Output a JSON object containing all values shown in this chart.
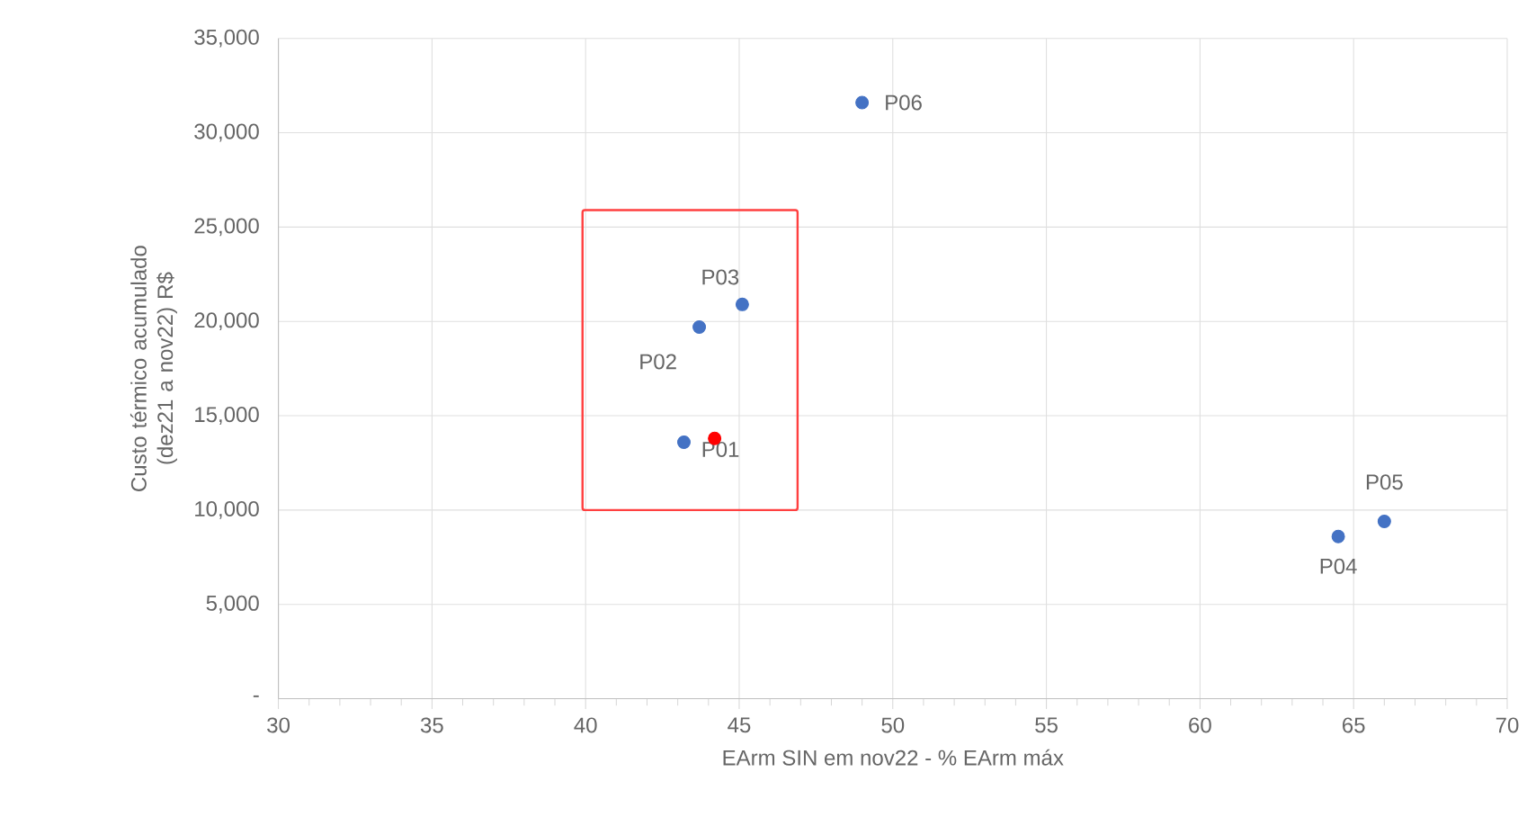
{
  "chart_data": {
    "type": "scatter",
    "xlabel": "EArm SIN em nov22 - % EArm máx",
    "ylabel": "Custo térmico acumulado (dez21 a nov22) R$",
    "series": [
      {
        "color": "#4472c4",
        "x": [
          43.2,
          43.7,
          45.1,
          64.5,
          66.0,
          49.0
        ],
        "values": [
          13600,
          19700,
          20900,
          8600,
          9400,
          31600
        ]
      },
      {
        "color": "#ff0000",
        "x": [
          44.2
        ],
        "values": [
          13800
        ]
      }
    ],
    "annotations": [
      {
        "text": "P01",
        "x": 43.2,
        "y": 13600
      },
      {
        "text": "P02",
        "x": 43.7,
        "y": 19700
      },
      {
        "text": "P03",
        "x": 45.1,
        "y": 20900
      },
      {
        "text": "P04",
        "x": 64.5,
        "y": 8600
      },
      {
        "text": "P05",
        "x": 66.0,
        "y": 9400
      },
      {
        "text": "P06",
        "x": 49.0,
        "y": 31600
      }
    ],
    "xlim": [
      30,
      70
    ],
    "xticks": [
      30,
      35,
      40,
      45,
      50,
      55,
      60,
      65,
      70
    ],
    "ylim": [
      0,
      35000
    ],
    "yticks": [
      {
        "value": 0,
        "label": "-"
      },
      {
        "value": 5000,
        "label": "5,000"
      },
      {
        "value": 10000,
        "label": "10,000"
      },
      {
        "value": 15000,
        "label": "15,000"
      },
      {
        "value": 20000,
        "label": "20,000"
      },
      {
        "value": 25000,
        "label": "25,000"
      },
      {
        "value": 30000,
        "label": "30,000"
      },
      {
        "value": 35000,
        "label": "35,000"
      }
    ],
    "grid": true,
    "marker": "circle"
  }
}
